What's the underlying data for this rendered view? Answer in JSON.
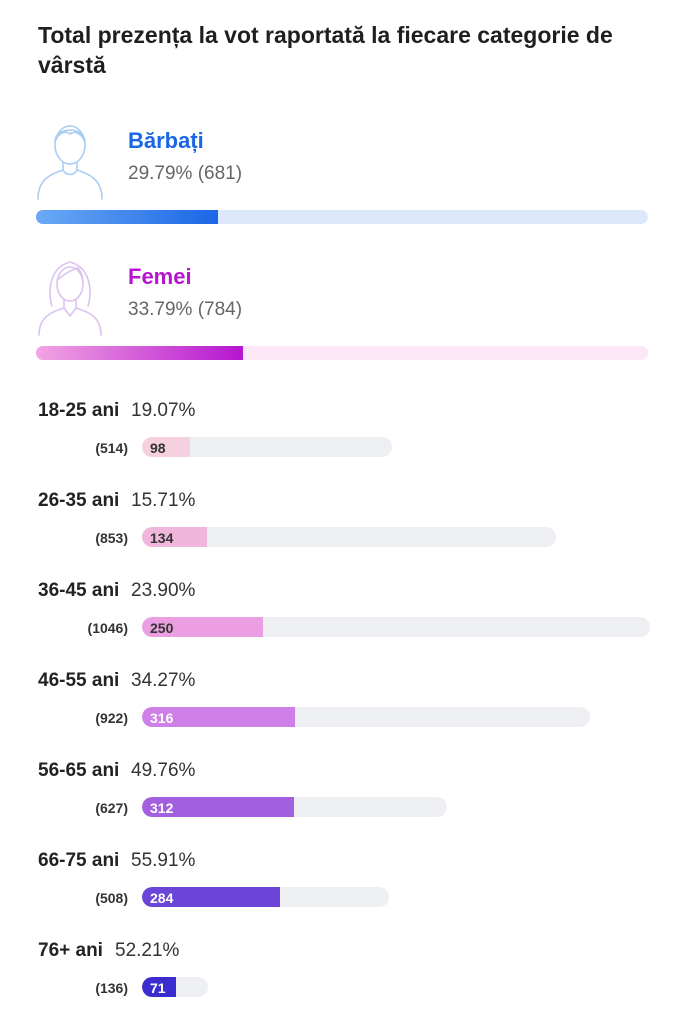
{
  "title": "Total prezența la vot raportată la fiecare categorie de vârstă",
  "gender": [
    {
      "label": "Bărbați",
      "value_text": "29.79% (681)",
      "percent": 29.79,
      "count": 681,
      "icon": "man-icon",
      "color": "#1a66e6",
      "fill_start": "#6aaaf5",
      "fill_end": "#1a66e6",
      "track_color": "#dde9fb",
      "icon_color": "#a9cdf3"
    },
    {
      "label": "Femei",
      "value_text": "33.79% (784)",
      "percent": 33.79,
      "count": 784,
      "icon": "woman-icon",
      "color": "#b515cf",
      "fill_start": "#f2a5e3",
      "fill_end": "#b515cf",
      "track_color": "#fbe7f6",
      "icon_color": "#dcc2ef"
    }
  ],
  "age_groups": [
    {
      "label": "18-25 ani",
      "percent_text": "19.07%",
      "total_text": "(514)",
      "count_text": "98",
      "percent": 19.07,
      "total": 514,
      "count": 98,
      "color": "#f6d0de",
      "count_color": "#333333"
    },
    {
      "label": "26-35 ani",
      "percent_text": "15.71%",
      "total_text": "(853)",
      "count_text": "134",
      "percent": 15.71,
      "total": 853,
      "count": 134,
      "color": "#f0b6dc",
      "count_color": "#333333"
    },
    {
      "label": "36-45 ani",
      "percent_text": "23.90%",
      "total_text": "(1046)",
      "count_text": "250",
      "percent": 23.9,
      "total": 1046,
      "count": 250,
      "color": "#eb9fe2",
      "count_color": "#333333"
    },
    {
      "label": "46-55 ani",
      "percent_text": "34.27%",
      "total_text": "(922)",
      "count_text": "316",
      "percent": 34.27,
      "total": 922,
      "count": 316,
      "color": "#cf80e8",
      "count_color": "#ffffff"
    },
    {
      "label": "56-65 ani",
      "percent_text": "49.76%",
      "total_text": "(627)",
      "count_text": "312",
      "percent": 49.76,
      "total": 627,
      "count": 312,
      "color": "#a25fe0",
      "count_color": "#ffffff"
    },
    {
      "label": "66-75 ani",
      "percent_text": "55.91%",
      "total_text": "(508)",
      "count_text": "284",
      "percent": 55.91,
      "total": 508,
      "count": 284,
      "color": "#6b44d8",
      "count_color": "#ffffff"
    },
    {
      "label": "76+ ani",
      "percent_text": "52.21%",
      "total_text": "(136)",
      "count_text": "71",
      "percent": 52.21,
      "total": 136,
      "count": 71,
      "color": "#3b2ccf",
      "count_color": "#ffffff"
    }
  ],
  "chart_data": {
    "type": "bar",
    "title": "Total prezența la vot raportată la fiecare categorie de vârstă",
    "series": [
      {
        "name": "Bărbați",
        "percent": 29.79,
        "count": 681
      },
      {
        "name": "Femei",
        "percent": 33.79,
        "count": 784
      }
    ],
    "categories": [
      "18-25 ani",
      "26-35 ani",
      "36-45 ani",
      "46-55 ani",
      "56-65 ani",
      "66-75 ani",
      "76+ ani"
    ],
    "percent": [
      19.07,
      15.71,
      23.9,
      34.27,
      49.76,
      55.91,
      52.21
    ],
    "voted": [
      98,
      134,
      250,
      316,
      312,
      284,
      71
    ],
    "totals": [
      514,
      853,
      1046,
      922,
      627,
      508,
      136
    ]
  }
}
